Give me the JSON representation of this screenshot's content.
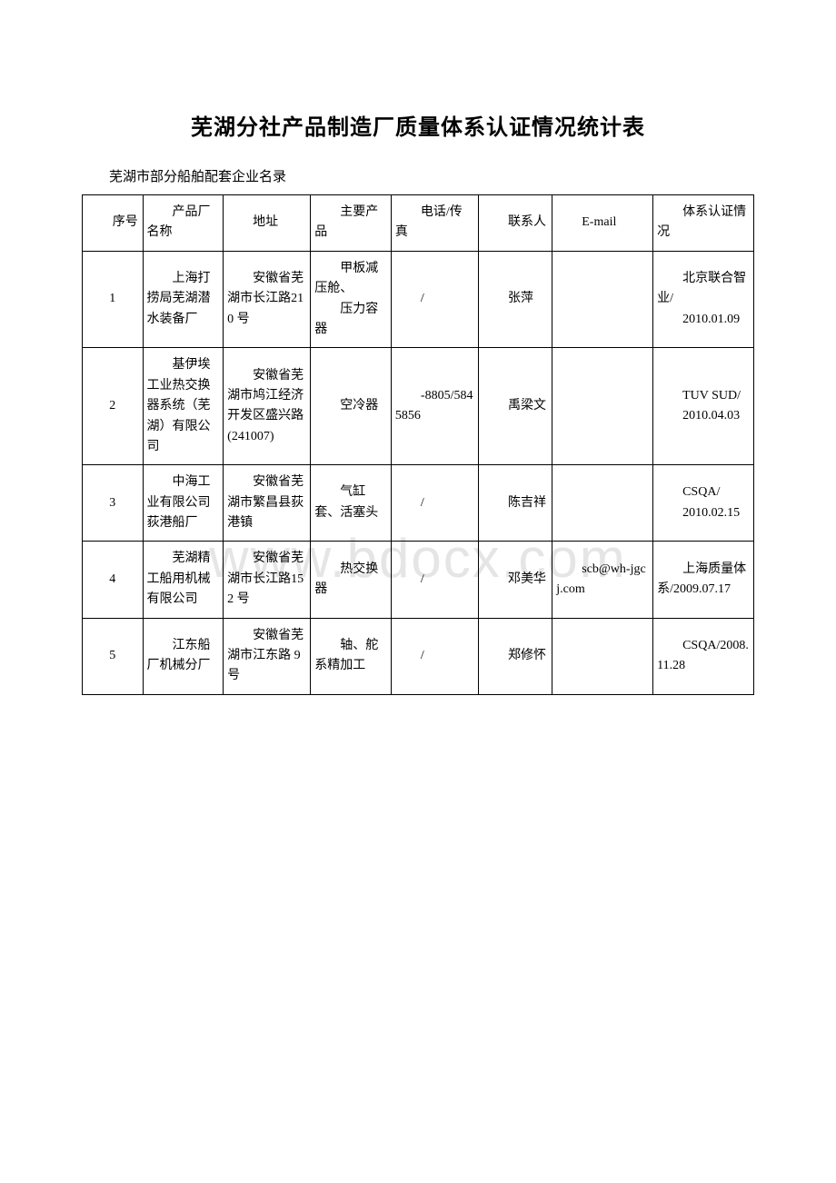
{
  "title": "芜湖分社产品制造厂质量体系认证情况统计表",
  "subtitle": "芜湖市部分船舶配套企业名录",
  "watermark": "www.bdocx.com",
  "headers": {
    "seq": "序号",
    "name": "产品厂名称",
    "addr": "地址",
    "product": "主要产品",
    "tel": "电话/传真",
    "contact": "联系人",
    "email": "E-mail",
    "cert": "体系认证情况"
  },
  "rows": [
    {
      "seq": "1",
      "name": "上海打捞局芜湖潜水装备厂",
      "addr": "安徽省芜湖市长江路210 号",
      "product": "甲板减压舱、",
      "product2": "压力容器",
      "tel": "/",
      "contact": "张萍",
      "email": "",
      "cert": "北京联合智业/",
      "cert2": "2010.01.09"
    },
    {
      "seq": "2",
      "name": "基伊埃工业热交换器系统（芜湖）有限公司",
      "addr": "安徽省芜湖市鸠江经济开发区盛兴路(241007)",
      "product": "空冷器",
      "tel": "-8805/5845856",
      "contact": "禹梁文",
      "email": "",
      "cert": "TUV SUD/",
      "cert2": "2010.04.03"
    },
    {
      "seq": "3",
      "name": "中海工业有限公司荻港船厂",
      "addr": "安徽省芜湖市繁昌县荻港镇",
      "product": "气缸套、活塞头",
      "tel": "/",
      "contact": "陈吉祥",
      "email": "",
      "cert": "CSQA/",
      "cert2": "2010.02.15"
    },
    {
      "seq": "4",
      "name": "芜湖精工船用机械有限公司",
      "addr": "安徽省芜湖市长江路152 号",
      "product": "热交换器",
      "tel": "/",
      "contact": "邓美华",
      "email": "scb@wh-jgcj.com",
      "cert": "上海质量体系/2009.07.17"
    },
    {
      "seq": "5",
      "name": "江东船厂机械分厂",
      "addr": "安徽省芜湖市江东路 9号",
      "product": "轴、舵系精加工",
      "tel": "/",
      "contact": "郑修怀",
      "email": "",
      "cert": "CSQA/2008.11.28"
    }
  ]
}
